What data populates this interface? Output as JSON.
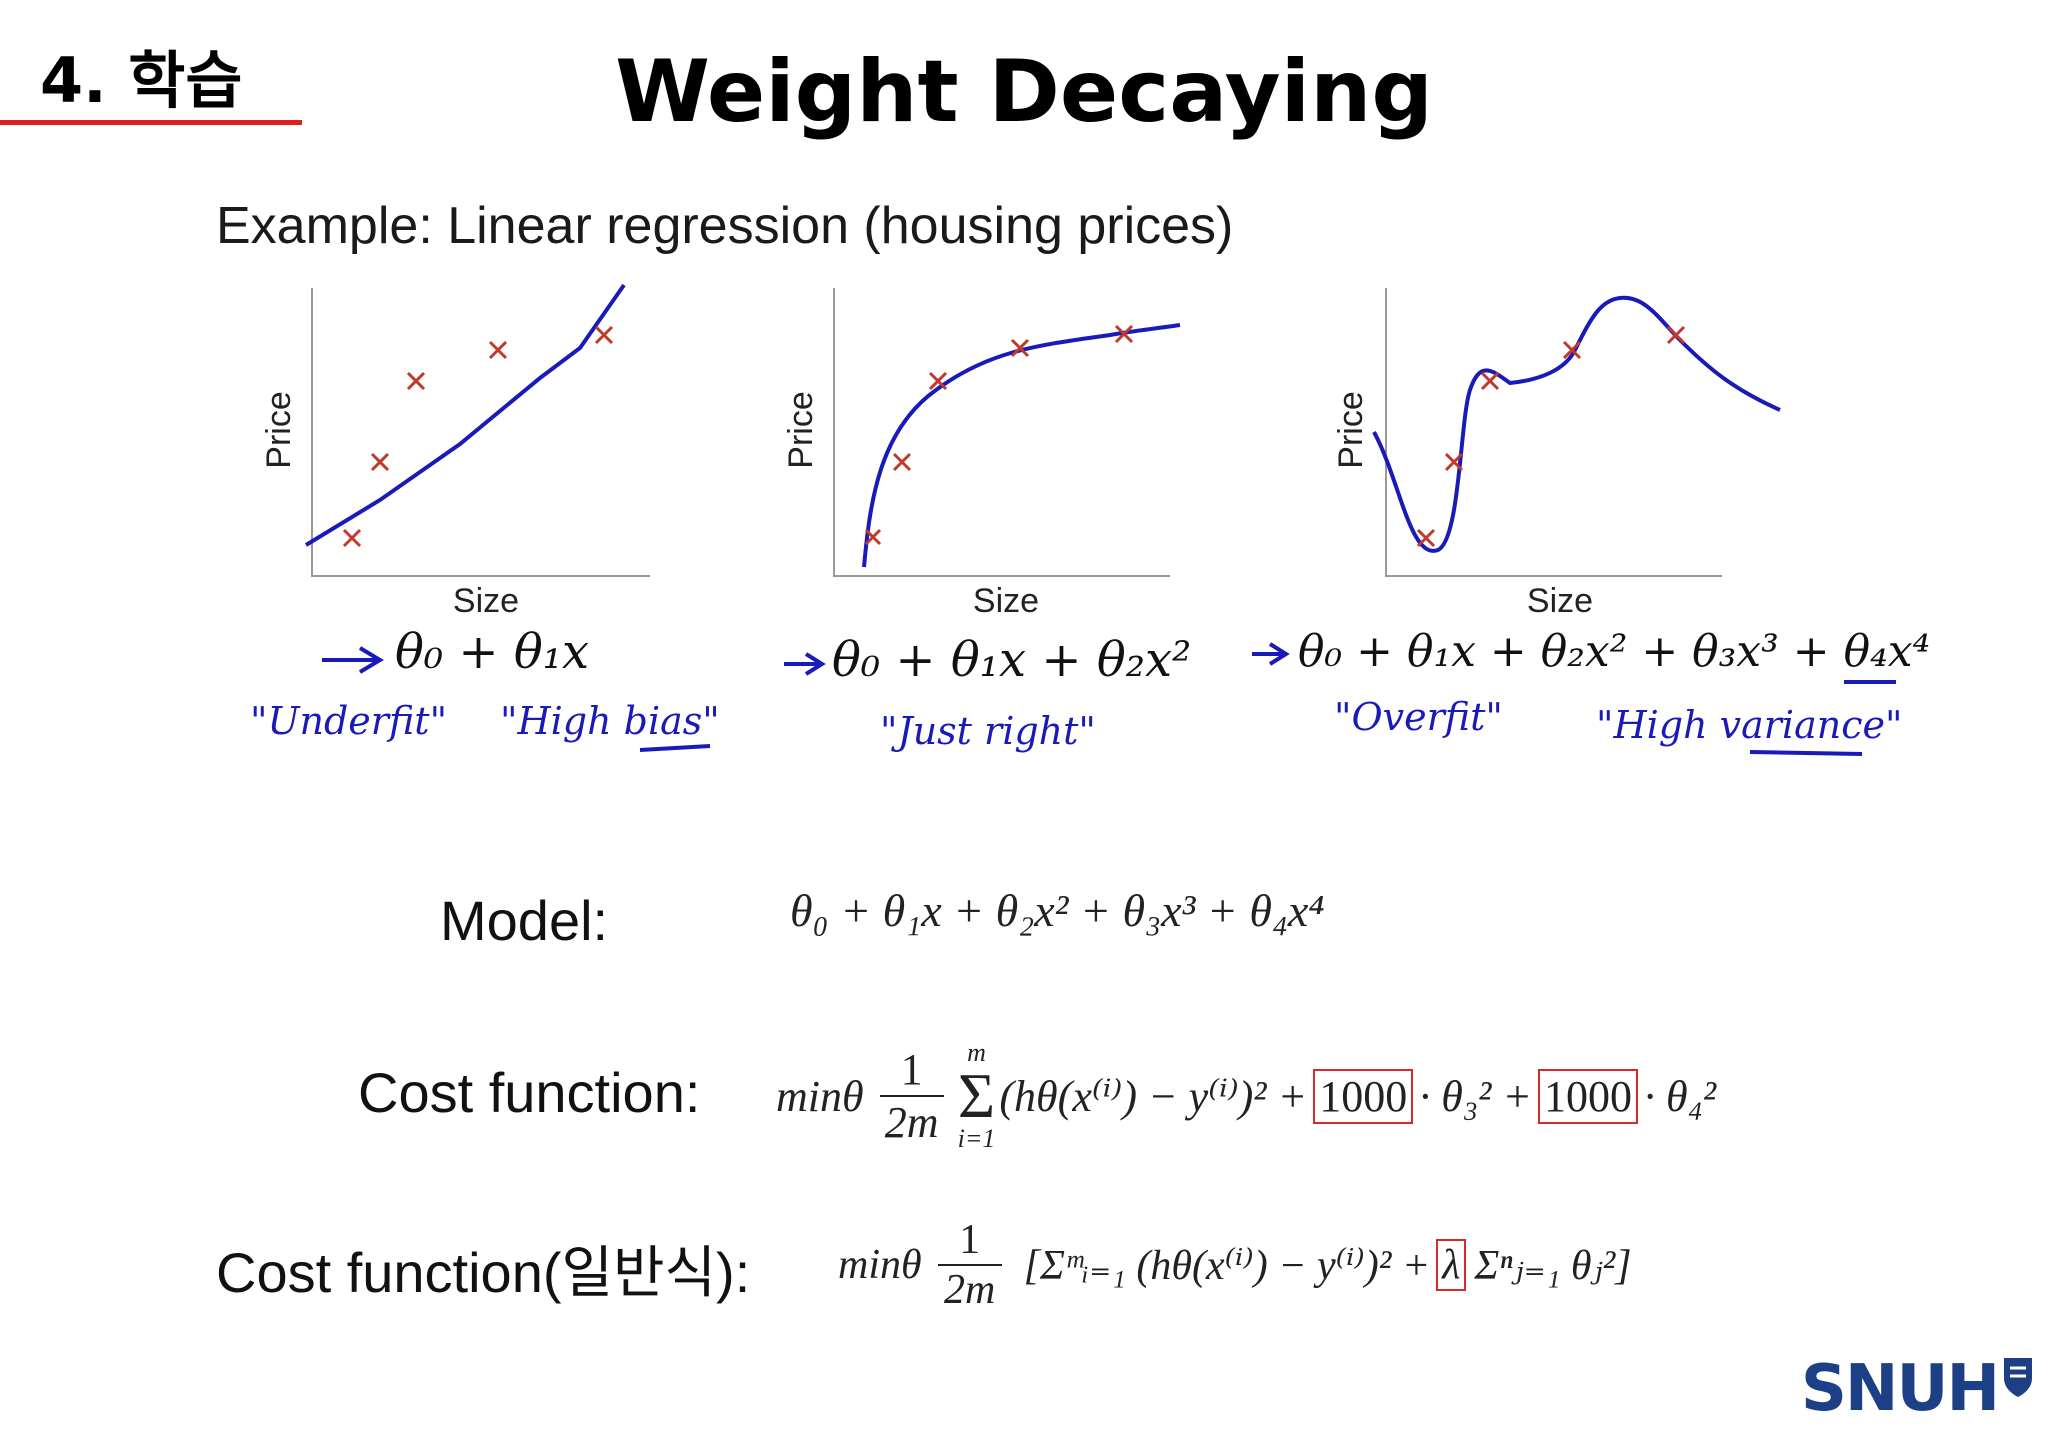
{
  "section": {
    "number": "4. 학습"
  },
  "title": "Weight Decaying",
  "example": "Example: Linear regression (housing prices)",
  "plots": [
    {
      "ylabel": "Price",
      "xlabel": "Size",
      "formula": "θ₀ + θ₁x",
      "annotations": [
        "\"Underfit\"",
        "\"High bias\""
      ]
    },
    {
      "ylabel": "Price",
      "xlabel": "Size",
      "formula": "θ₀ + θ₁x + θ₂x²",
      "annotations": [
        "\"Just right\""
      ]
    },
    {
      "ylabel": "Price",
      "xlabel": "Size",
      "formula": "θ₀ + θ₁x + θ₂x² + θ₃x³ + θ₄x⁴",
      "annotations": [
        "\"Overfit\"",
        "\"High variance\""
      ]
    }
  ],
  "model": {
    "label": "Model:",
    "expr": "θ₀ + θ₁x + θ₂x² + θ₃x³ + θ₄x⁴"
  },
  "cost": {
    "label": "Cost function:",
    "min": "minθ",
    "frac_num": "1",
    "frac_den": "2m",
    "sum_top": "m",
    "sum_bottom": "i=1",
    "body": "(hθ(x⁽ⁱ⁾) − y⁽ⁱ⁾)² +",
    "coef1": "1000",
    "term1": "· θ₃² +",
    "coef2": "1000",
    "term2": "· θ₄²"
  },
  "cost_general": {
    "label": "Cost function(일반식):",
    "min": "minθ",
    "frac_num": "1",
    "frac_den": "2m",
    "body": "[Σᵐᵢ₌₁ (hθ(x⁽ⁱ⁾) − y⁽ⁱ⁾)² +",
    "lambda": "λ",
    "tail": "Σⁿⱼ₌₁ θⱼ²]"
  },
  "logo": "SNUH",
  "colors": {
    "accent_red": "#e01e1e",
    "curve_blue": "#1a1ab8",
    "marker_red": "#c0392b",
    "logo_blue": "#1c3f86"
  }
}
